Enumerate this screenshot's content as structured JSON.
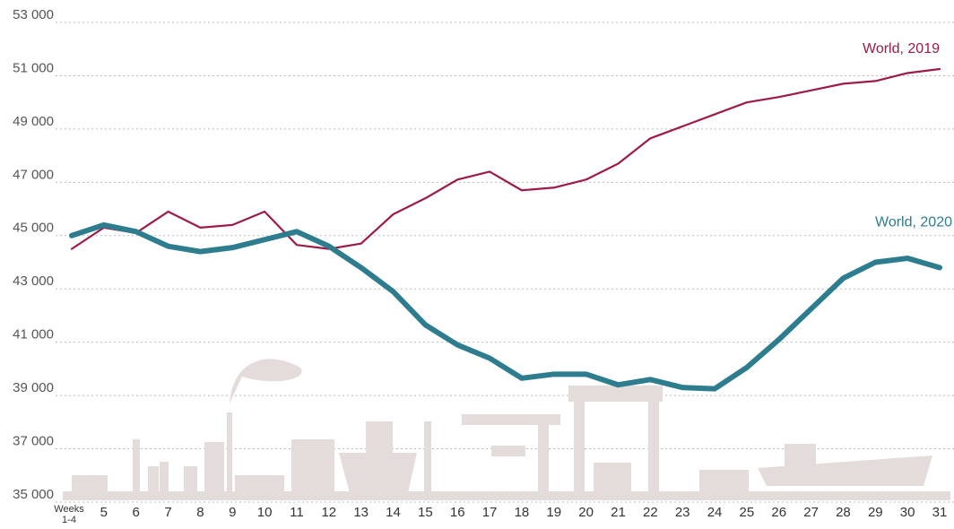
{
  "chart_data": {
    "type": "line",
    "categories": [
      "Weeks 1-4",
      "5",
      "6",
      "7",
      "8",
      "9",
      "10",
      "11",
      "12",
      "13",
      "14",
      "15",
      "16",
      "17",
      "18",
      "19",
      "20",
      "21",
      "22",
      "23",
      "24",
      "25",
      "26",
      "27",
      "28",
      "29",
      "30",
      "31"
    ],
    "series": [
      {
        "name": "World, 2019",
        "color": "#9b1c47",
        "values": [
          44500,
          45300,
          45100,
          45900,
          45300,
          45400,
          45900,
          44650,
          44500,
          44700,
          45800,
          46400,
          47100,
          47400,
          46700,
          46800,
          47100,
          47700,
          48650,
          49100,
          49550,
          50000,
          50200,
          50450,
          50700,
          50800,
          51100,
          51250
        ]
      },
      {
        "name": "World, 2020",
        "color": "#2e7d8f",
        "values": [
          45000,
          45400,
          45150,
          44600,
          44400,
          44550,
          44850,
          45150,
          44600,
          43800,
          42900,
          41650,
          40900,
          40400,
          39650,
          39800,
          39800,
          39400,
          39600,
          39300,
          39250,
          40050,
          41100,
          42250,
          43400,
          44000,
          44150,
          43800
        ]
      }
    ],
    "ylim": [
      35000,
      53000
    ],
    "yticks": [
      {
        "value": 35000,
        "label": "35 000"
      },
      {
        "value": 37000,
        "label": "37 000"
      },
      {
        "value": 39000,
        "label": "39 000"
      },
      {
        "value": 41000,
        "label": "41 000"
      },
      {
        "value": 43000,
        "label": "43 000"
      },
      {
        "value": 45000,
        "label": "45 000"
      },
      {
        "value": 47000,
        "label": "47 000"
      },
      {
        "value": 49000,
        "label": "49 000"
      },
      {
        "value": 51000,
        "label": "51 000"
      },
      {
        "value": 53000,
        "label": "53 000"
      }
    ],
    "grid": true
  }
}
